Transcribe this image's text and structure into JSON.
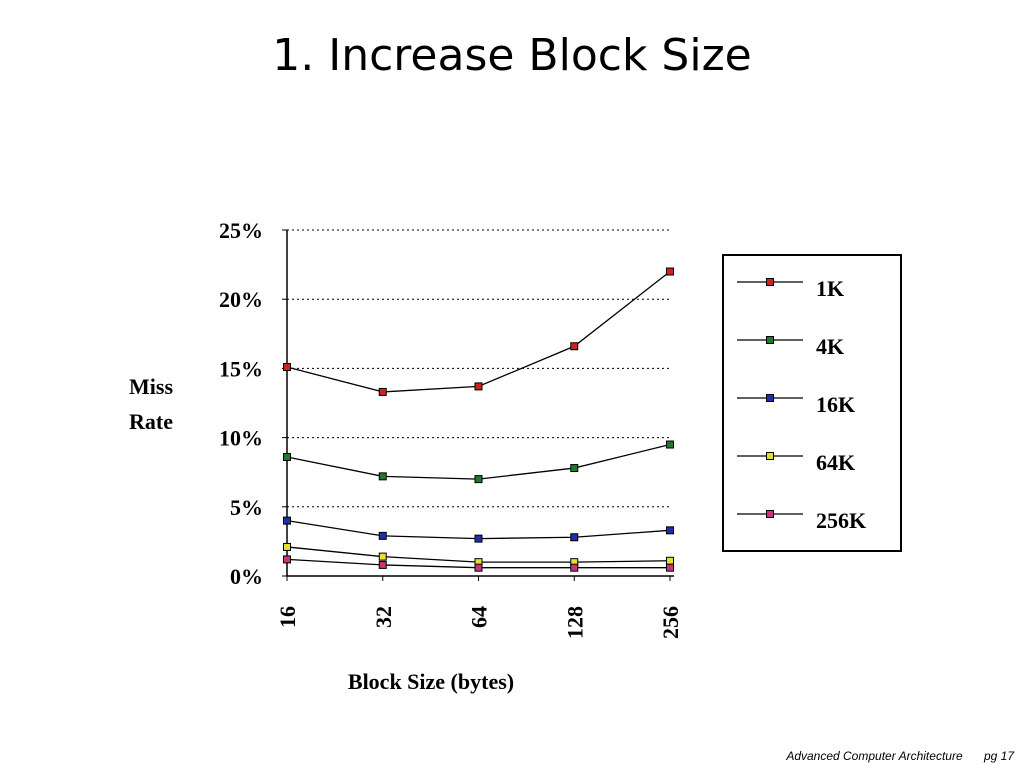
{
  "slide": {
    "title": "1. Increase Block Size",
    "footer_course": "Advanced Computer Architecture",
    "footer_page": "pg 17"
  },
  "chart_data": {
    "type": "line",
    "xlabel": "Block Size (bytes)",
    "ylabel_lines": [
      "Miss",
      "Rate"
    ],
    "categories": [
      "16",
      "32",
      "64",
      "128",
      "256"
    ],
    "ylim": [
      0,
      25
    ],
    "yticks": [
      0,
      5,
      10,
      15,
      20,
      25
    ],
    "ytick_labels": [
      "0%",
      "5%",
      "10%",
      "15%",
      "20%",
      "25%"
    ],
    "grid": "horizontal dotted",
    "legend_position": "right",
    "series": [
      {
        "name": "1K",
        "color": "#cc2222",
        "values": [
          15.1,
          13.3,
          13.7,
          16.6,
          22.0
        ]
      },
      {
        "name": "4K",
        "color": "#1e7a2e",
        "values": [
          8.6,
          7.2,
          7.0,
          7.8,
          9.5
        ]
      },
      {
        "name": "16K",
        "color": "#1f2fa8",
        "values": [
          4.0,
          2.9,
          2.7,
          2.8,
          3.3
        ]
      },
      {
        "name": "64K",
        "color": "#e6e033",
        "values": [
          2.1,
          1.4,
          1.0,
          1.0,
          1.1
        ]
      },
      {
        "name": "256K",
        "color": "#cc3377",
        "values": [
          1.2,
          0.8,
          0.6,
          0.6,
          0.6
        ]
      }
    ]
  }
}
